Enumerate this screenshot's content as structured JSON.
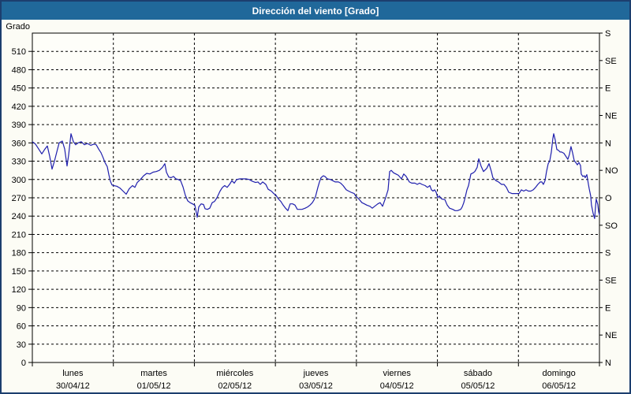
{
  "window": {
    "title": "Dirección del viento [Grado]"
  },
  "colors": {
    "titlebar_bg": "#20689a",
    "titlebar_text": "#ffffff",
    "window_border": "#1c3e6e",
    "plot_background": "#fefef9",
    "grid": "#000000",
    "line": "#1f1fad"
  },
  "chart_data": {
    "type": "line",
    "title": "Dirección del viento [Grado]",
    "xlabel": "",
    "ylabel": "Grado",
    "ylim": [
      0,
      540
    ],
    "grid": true,
    "y_ticks": [
      0,
      30,
      60,
      90,
      120,
      150,
      180,
      210,
      240,
      270,
      300,
      330,
      360,
      390,
      420,
      450,
      480,
      510
    ],
    "right_axis_ticks": [
      {
        "deg": 540,
        "label": "S"
      },
      {
        "deg": 495,
        "label": "SE"
      },
      {
        "deg": 450,
        "label": "E"
      },
      {
        "deg": 405,
        "label": "NE"
      },
      {
        "deg": 360,
        "label": "N"
      },
      {
        "deg": 315,
        "label": "NO"
      },
      {
        "deg": 270,
        "label": "O"
      },
      {
        "deg": 225,
        "label": "SO"
      },
      {
        "deg": 180,
        "label": "S"
      },
      {
        "deg": 135,
        "label": "SE"
      },
      {
        "deg": 90,
        "label": "E"
      },
      {
        "deg": 45,
        "label": "NE"
      },
      {
        "deg": 0,
        "label": "N"
      }
    ],
    "x_days": [
      {
        "name": "lunes",
        "date": "30/04/12"
      },
      {
        "name": "martes",
        "date": "01/05/12"
      },
      {
        "name": "miércoles",
        "date": "02/05/12"
      },
      {
        "name": "jueves",
        "date": "03/05/12"
      },
      {
        "name": "viernes",
        "date": "04/05/12"
      },
      {
        "name": "sábado",
        "date": "05/05/12"
      },
      {
        "name": "domingo",
        "date": "06/05/12"
      }
    ],
    "series": [
      {
        "name": "Dirección del viento",
        "color": "#1f1fad",
        "x_unit": "days_since_start",
        "y_unit": "degrees",
        "points": [
          [
            0.0,
            362
          ],
          [
            0.039,
            358
          ],
          [
            0.078,
            350
          ],
          [
            0.117,
            342
          ],
          [
            0.156,
            350
          ],
          [
            0.185,
            355
          ],
          [
            0.214,
            338
          ],
          [
            0.243,
            317
          ],
          [
            0.273,
            330
          ],
          [
            0.302,
            345
          ],
          [
            0.331,
            360
          ],
          [
            0.37,
            363
          ],
          [
            0.399,
            350
          ],
          [
            0.428,
            322
          ],
          [
            0.448,
            340
          ],
          [
            0.477,
            375
          ],
          [
            0.506,
            362
          ],
          [
            0.535,
            357
          ],
          [
            0.565,
            360
          ],
          [
            0.604,
            362
          ],
          [
            0.643,
            357
          ],
          [
            0.681,
            359
          ],
          [
            0.72,
            356
          ],
          [
            0.759,
            358
          ],
          [
            0.789,
            357
          ],
          [
            0.818,
            350
          ],
          [
            0.847,
            344
          ],
          [
            0.876,
            335
          ],
          [
            0.896,
            328
          ],
          [
            0.925,
            321
          ],
          [
            0.944,
            308
          ],
          [
            0.964,
            297
          ],
          [
            0.983,
            291
          ],
          [
            1.003,
            290
          ],
          [
            1.042,
            289
          ],
          [
            1.081,
            286
          ],
          [
            1.12,
            281
          ],
          [
            1.159,
            276
          ],
          [
            1.197,
            285
          ],
          [
            1.236,
            290
          ],
          [
            1.266,
            287
          ],
          [
            1.295,
            295
          ],
          [
            1.334,
            300
          ],
          [
            1.373,
            306
          ],
          [
            1.412,
            310
          ],
          [
            1.451,
            309
          ],
          [
            1.49,
            312
          ],
          [
            1.529,
            313
          ],
          [
            1.567,
            315
          ],
          [
            1.606,
            320
          ],
          [
            1.636,
            326
          ],
          [
            1.655,
            312
          ],
          [
            1.684,
            304
          ],
          [
            1.713,
            303
          ],
          [
            1.743,
            305
          ],
          [
            1.772,
            301
          ],
          [
            1.801,
            300
          ],
          [
            1.83,
            298
          ],
          [
            1.86,
            288
          ],
          [
            1.889,
            274
          ],
          [
            1.918,
            265
          ],
          [
            1.947,
            262
          ],
          [
            1.976,
            260
          ],
          [
            2.006,
            258
          ],
          [
            2.025,
            245
          ],
          [
            2.035,
            238
          ],
          [
            2.054,
            255
          ],
          [
            2.083,
            260
          ],
          [
            2.113,
            259
          ],
          [
            2.132,
            252
          ],
          [
            2.161,
            251
          ],
          [
            2.19,
            253
          ],
          [
            2.22,
            262
          ],
          [
            2.249,
            264
          ],
          [
            2.278,
            270
          ],
          [
            2.317,
            281
          ],
          [
            2.346,
            287
          ],
          [
            2.375,
            290
          ],
          [
            2.405,
            287
          ],
          [
            2.434,
            292
          ],
          [
            2.463,
            298
          ],
          [
            2.492,
            294
          ],
          [
            2.522,
            300
          ],
          [
            2.56,
            301
          ],
          [
            2.599,
            301
          ],
          [
            2.638,
            301
          ],
          [
            2.677,
            300
          ],
          [
            2.716,
            297
          ],
          [
            2.755,
            295
          ],
          [
            2.784,
            296
          ],
          [
            2.814,
            292
          ],
          [
            2.843,
            296
          ],
          [
            2.882,
            292
          ],
          [
            2.911,
            284
          ],
          [
            2.95,
            281
          ],
          [
            2.979,
            277
          ],
          [
            3.008,
            274
          ],
          [
            3.038,
            268
          ],
          [
            3.067,
            264
          ],
          [
            3.096,
            258
          ],
          [
            3.125,
            253
          ],
          [
            3.154,
            249
          ],
          [
            3.183,
            260
          ],
          [
            3.213,
            260
          ],
          [
            3.242,
            258
          ],
          [
            3.271,
            251
          ],
          [
            3.3,
            251
          ],
          [
            3.329,
            251
          ],
          [
            3.368,
            253
          ],
          [
            3.398,
            255
          ],
          [
            3.427,
            258
          ],
          [
            3.456,
            262
          ],
          [
            3.475,
            266
          ],
          [
            3.495,
            272
          ],
          [
            3.524,
            287
          ],
          [
            3.544,
            296
          ],
          [
            3.563,
            303
          ],
          [
            3.592,
            306
          ],
          [
            3.612,
            305
          ],
          [
            3.641,
            301
          ],
          [
            3.68,
            300
          ],
          [
            3.709,
            298
          ],
          [
            3.738,
            296
          ],
          [
            3.777,
            296
          ],
          [
            3.806,
            294
          ],
          [
            3.836,
            290
          ],
          [
            3.875,
            283
          ],
          [
            3.904,
            281
          ],
          [
            3.933,
            279
          ],
          [
            3.972,
            277
          ],
          [
            3.991,
            273
          ],
          [
            4.03,
            268
          ],
          [
            4.069,
            262
          ],
          [
            4.099,
            260
          ],
          [
            4.128,
            258
          ],
          [
            4.167,
            256
          ],
          [
            4.196,
            253
          ],
          [
            4.225,
            256
          ],
          [
            4.264,
            260
          ],
          [
            4.293,
            262
          ],
          [
            4.323,
            256
          ],
          [
            4.361,
            270
          ],
          [
            4.391,
            283
          ],
          [
            4.41,
            313
          ],
          [
            4.43,
            315
          ],
          [
            4.459,
            311
          ],
          [
            4.488,
            309
          ],
          [
            4.517,
            307
          ],
          [
            4.556,
            301
          ],
          [
            4.585,
            309
          ],
          [
            4.615,
            305
          ],
          [
            4.654,
            296
          ],
          [
            4.683,
            294
          ],
          [
            4.722,
            294
          ],
          [
            4.751,
            292
          ],
          [
            4.78,
            294
          ],
          [
            4.809,
            292
          ],
          [
            4.848,
            290
          ],
          [
            4.878,
            287
          ],
          [
            4.907,
            290
          ],
          [
            4.926,
            283
          ],
          [
            4.946,
            281
          ],
          [
            4.965,
            283
          ],
          [
            4.985,
            279
          ],
          [
            5.004,
            270
          ],
          [
            5.024,
            273
          ],
          [
            5.053,
            268
          ],
          [
            5.092,
            267
          ],
          [
            5.121,
            258
          ],
          [
            5.15,
            253
          ],
          [
            5.189,
            251
          ],
          [
            5.218,
            249
          ],
          [
            5.248,
            249
          ],
          [
            5.287,
            251
          ],
          [
            5.306,
            255
          ],
          [
            5.325,
            262
          ],
          [
            5.345,
            272
          ],
          [
            5.364,
            283
          ],
          [
            5.384,
            290
          ],
          [
            5.413,
            309
          ],
          [
            5.442,
            311
          ],
          [
            5.462,
            313
          ],
          [
            5.491,
            320
          ],
          [
            5.51,
            334
          ],
          [
            5.539,
            322
          ],
          [
            5.569,
            313
          ],
          [
            5.608,
            318
          ],
          [
            5.637,
            326
          ],
          [
            5.666,
            313
          ],
          [
            5.685,
            303
          ],
          [
            5.724,
            298
          ],
          [
            5.754,
            296
          ],
          [
            5.792,
            292
          ],
          [
            5.822,
            292
          ],
          [
            5.851,
            287
          ],
          [
            5.88,
            279
          ],
          [
            5.919,
            277
          ],
          [
            5.948,
            277
          ],
          [
            5.977,
            277
          ],
          [
            6.007,
            277
          ],
          [
            6.036,
            283
          ],
          [
            6.065,
            281
          ],
          [
            6.094,
            283
          ],
          [
            6.123,
            281
          ],
          [
            6.153,
            281
          ],
          [
            6.182,
            283
          ],
          [
            6.211,
            287
          ],
          [
            6.24,
            292
          ],
          [
            6.269,
            296
          ],
          [
            6.289,
            296
          ],
          [
            6.308,
            292
          ],
          [
            6.328,
            298
          ],
          [
            6.347,
            313
          ],
          [
            6.367,
            326
          ],
          [
            6.386,
            330
          ],
          [
            6.406,
            345
          ],
          [
            6.425,
            367
          ],
          [
            6.435,
            375
          ],
          [
            6.454,
            365
          ],
          [
            6.474,
            349
          ],
          [
            6.493,
            348
          ],
          [
            6.513,
            345
          ],
          [
            6.532,
            345
          ],
          [
            6.561,
            343
          ],
          [
            6.59,
            337
          ],
          [
            6.61,
            333
          ],
          [
            6.629,
            341
          ],
          [
            6.649,
            354
          ],
          [
            6.668,
            344
          ],
          [
            6.688,
            331
          ],
          [
            6.707,
            328
          ],
          [
            6.727,
            324
          ],
          [
            6.746,
            328
          ],
          [
            6.766,
            323
          ],
          [
            6.775,
            309
          ],
          [
            6.795,
            305
          ],
          [
            6.814,
            306
          ],
          [
            6.824,
            303
          ],
          [
            6.844,
            308
          ],
          [
            6.863,
            293
          ],
          [
            6.873,
            285
          ],
          [
            6.892,
            273
          ],
          [
            6.902,
            258
          ],
          [
            6.921,
            245
          ],
          [
            6.941,
            236
          ],
          [
            6.951,
            255
          ],
          [
            6.96,
            268
          ],
          [
            6.98,
            259
          ],
          [
            6.99,
            247
          ],
          [
            7.0,
            242
          ]
        ]
      }
    ]
  }
}
